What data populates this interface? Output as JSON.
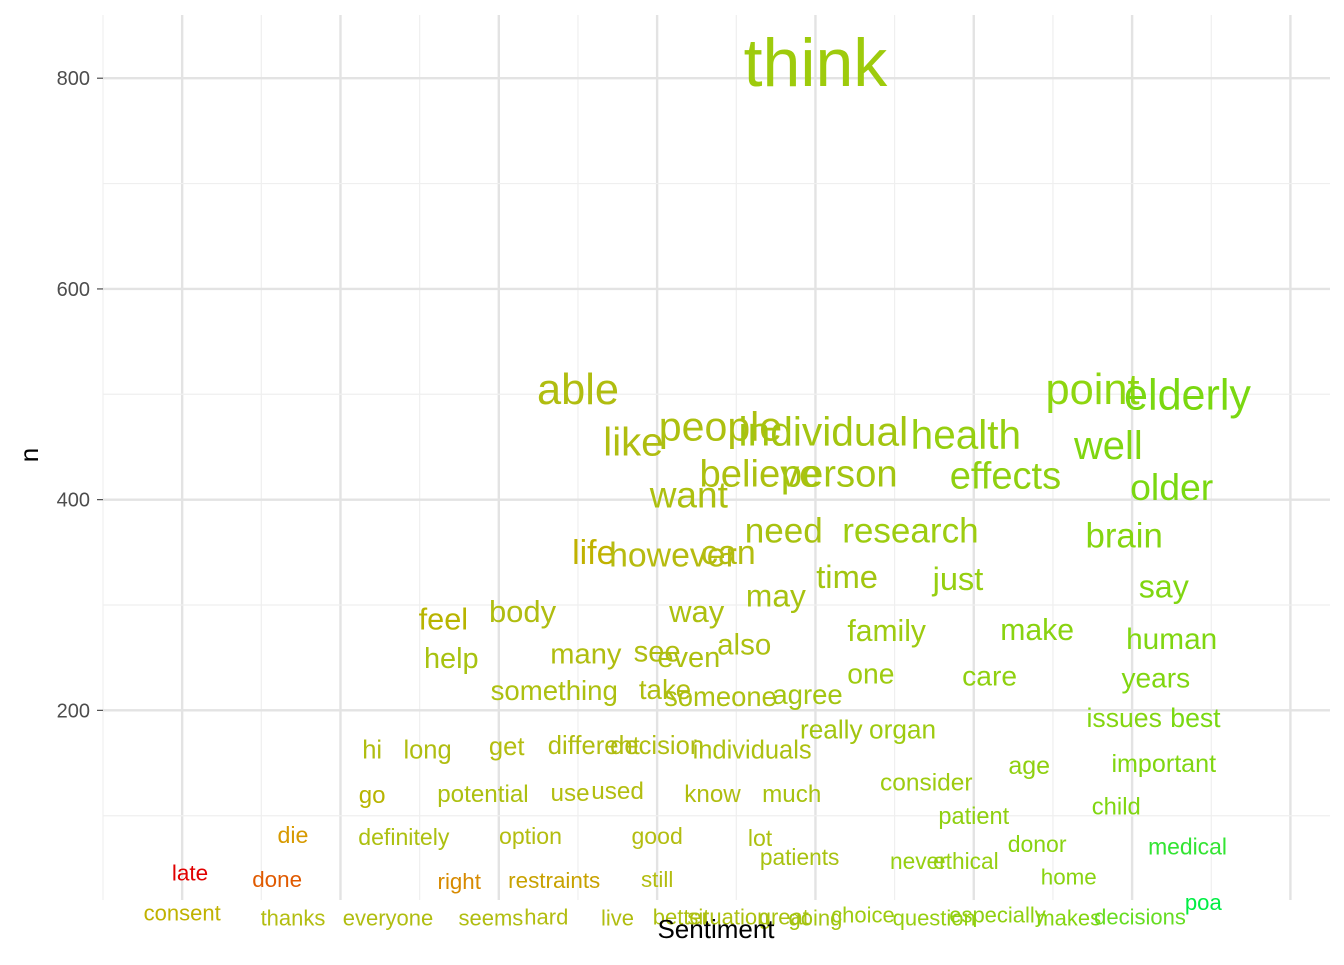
{
  "chart_data": {
    "type": "scatter",
    "subtype": "word-cloud-scatter",
    "xlabel": "Sentiment",
    "ylabel": "n",
    "xlim": [
      -0.7,
      0.85
    ],
    "ylim": [
      20,
      860
    ],
    "x_ticks": [],
    "y_ticks": [
      200,
      400,
      600,
      800
    ],
    "grid": true,
    "legend": "none",
    "colors": {
      "negative": "#e00000",
      "neutral": "#b8b400",
      "positive": "#00ee00",
      "grid_major": "#e3e3e3",
      "grid_minor": "#efefef",
      "axis_text": "#4d4d4d"
    },
    "words": [
      {
        "word": "think",
        "sentiment": 0.2,
        "n": 815,
        "color": "#9ecb0c"
      },
      {
        "word": "able",
        "sentiment": -0.1,
        "n": 505,
        "color": "#b0bd10"
      },
      {
        "word": "point",
        "sentiment": 0.55,
        "n": 505,
        "color": "#8ed610"
      },
      {
        "word": "elderly",
        "sentiment": 0.67,
        "n": 500,
        "color": "#7ad810"
      },
      {
        "word": "people",
        "sentiment": 0.08,
        "n": 470,
        "color": "#adc010"
      },
      {
        "word": "individual",
        "sentiment": 0.21,
        "n": 465,
        "color": "#a3c510"
      },
      {
        "word": "health",
        "sentiment": 0.39,
        "n": 462,
        "color": "#96cf10"
      },
      {
        "word": "like",
        "sentiment": -0.03,
        "n": 455,
        "color": "#b0bd10"
      },
      {
        "word": "well",
        "sentiment": 0.57,
        "n": 452,
        "color": "#80d610"
      },
      {
        "word": "believe",
        "sentiment": 0.13,
        "n": 425,
        "color": "#adc010"
      },
      {
        "word": "person",
        "sentiment": 0.23,
        "n": 425,
        "color": "#a3c510"
      },
      {
        "word": "effects",
        "sentiment": 0.44,
        "n": 423,
        "color": "#8fd010"
      },
      {
        "word": "older",
        "sentiment": 0.65,
        "n": 412,
        "color": "#7ad810"
      },
      {
        "word": "want",
        "sentiment": 0.04,
        "n": 405,
        "color": "#adc010"
      },
      {
        "word": "need",
        "sentiment": 0.16,
        "n": 371,
        "color": "#a8c210"
      },
      {
        "word": "research",
        "sentiment": 0.32,
        "n": 371,
        "color": "#9dcc10"
      },
      {
        "word": "brain",
        "sentiment": 0.59,
        "n": 366,
        "color": "#84d510"
      },
      {
        "word": "life",
        "sentiment": -0.08,
        "n": 350,
        "color": "#c0b200"
      },
      {
        "word": "however",
        "sentiment": 0.02,
        "n": 348,
        "color": "#b6bb10"
      },
      {
        "word": "can",
        "sentiment": 0.09,
        "n": 350,
        "color": "#b3bd10"
      },
      {
        "word": "time",
        "sentiment": 0.24,
        "n": 327,
        "color": "#a3c510"
      },
      {
        "word": "just",
        "sentiment": 0.38,
        "n": 325,
        "color": "#96cf10"
      },
      {
        "word": "say",
        "sentiment": 0.64,
        "n": 318,
        "color": "#80d610"
      },
      {
        "word": "may",
        "sentiment": 0.15,
        "n": 309,
        "color": "#a8c210"
      },
      {
        "word": "body",
        "sentiment": -0.17,
        "n": 294,
        "color": "#b0bd10"
      },
      {
        "word": "way",
        "sentiment": 0.05,
        "n": 294,
        "color": "#adc010"
      },
      {
        "word": "feel",
        "sentiment": -0.27,
        "n": 287,
        "color": "#b8b400"
      },
      {
        "word": "family",
        "sentiment": 0.29,
        "n": 276,
        "color": "#9ecb10"
      },
      {
        "word": "make",
        "sentiment": 0.48,
        "n": 277,
        "color": "#89d310"
      },
      {
        "word": "human",
        "sentiment": 0.65,
        "n": 268,
        "color": "#80d610"
      },
      {
        "word": "also",
        "sentiment": 0.11,
        "n": 263,
        "color": "#adc010"
      },
      {
        "word": "help",
        "sentiment": -0.26,
        "n": 250,
        "color": "#a8c210"
      },
      {
        "word": "many",
        "sentiment": -0.09,
        "n": 254,
        "color": "#b0bd10"
      },
      {
        "word": "see",
        "sentiment": 0.0,
        "n": 256,
        "color": "#b0bd10"
      },
      {
        "word": "even",
        "sentiment": 0.04,
        "n": 251,
        "color": "#adc010"
      },
      {
        "word": "one",
        "sentiment": 0.27,
        "n": 235,
        "color": "#9ecb10"
      },
      {
        "word": "care",
        "sentiment": 0.42,
        "n": 233,
        "color": "#8fd010"
      },
      {
        "word": "years",
        "sentiment": 0.63,
        "n": 231,
        "color": "#80d610"
      },
      {
        "word": "something",
        "sentiment": -0.13,
        "n": 219,
        "color": "#adc010"
      },
      {
        "word": "take",
        "sentiment": 0.01,
        "n": 220,
        "color": "#b0bd10"
      },
      {
        "word": "someone",
        "sentiment": 0.08,
        "n": 213,
        "color": "#adc010"
      },
      {
        "word": "agree",
        "sentiment": 0.19,
        "n": 215,
        "color": "#a3c510"
      },
      {
        "word": "issues",
        "sentiment": 0.59,
        "n": 193,
        "color": "#84d510"
      },
      {
        "word": "best",
        "sentiment": 0.68,
        "n": 193,
        "color": "#7ad810"
      },
      {
        "word": "really",
        "sentiment": 0.22,
        "n": 182,
        "color": "#a3c510"
      },
      {
        "word": "organ",
        "sentiment": 0.31,
        "n": 182,
        "color": "#9ecb10"
      },
      {
        "word": "hi",
        "sentiment": -0.36,
        "n": 163,
        "color": "#b0bd10"
      },
      {
        "word": "long",
        "sentiment": -0.29,
        "n": 163,
        "color": "#b0bd10"
      },
      {
        "word": "get",
        "sentiment": -0.19,
        "n": 166,
        "color": "#b3bd10"
      },
      {
        "word": "different",
        "sentiment": -0.08,
        "n": 167,
        "color": "#b0bd10"
      },
      {
        "word": "decision",
        "sentiment": 0.0,
        "n": 167,
        "color": "#b0bd10"
      },
      {
        "word": "individuals",
        "sentiment": 0.12,
        "n": 163,
        "color": "#adc010"
      },
      {
        "word": "age",
        "sentiment": 0.47,
        "n": 148,
        "color": "#8fd010"
      },
      {
        "word": "important",
        "sentiment": 0.64,
        "n": 150,
        "color": "#80d610"
      },
      {
        "word": "consider",
        "sentiment": 0.34,
        "n": 132,
        "color": "#9ecb10"
      },
      {
        "word": "go",
        "sentiment": -0.36,
        "n": 120,
        "color": "#b8b400"
      },
      {
        "word": "potential",
        "sentiment": -0.22,
        "n": 121,
        "color": "#adc010"
      },
      {
        "word": "use",
        "sentiment": -0.11,
        "n": 122,
        "color": "#b3bd10"
      },
      {
        "word": "used",
        "sentiment": -0.05,
        "n": 124,
        "color": "#b3bd10"
      },
      {
        "word": "know",
        "sentiment": 0.07,
        "n": 121,
        "color": "#b0bd10"
      },
      {
        "word": "much",
        "sentiment": 0.17,
        "n": 121,
        "color": "#a8c210"
      },
      {
        "word": "child",
        "sentiment": 0.58,
        "n": 109,
        "color": "#80d610"
      },
      {
        "word": "patient",
        "sentiment": 0.4,
        "n": 100,
        "color": "#8fd010"
      },
      {
        "word": "die",
        "sentiment": -0.46,
        "n": 82,
        "color": "#d79a00"
      },
      {
        "word": "definitely",
        "sentiment": -0.32,
        "n": 80,
        "color": "#adc010"
      },
      {
        "word": "option",
        "sentiment": -0.16,
        "n": 81,
        "color": "#b3bd10"
      },
      {
        "word": "good",
        "sentiment": 0.0,
        "n": 81,
        "color": "#b3bd10"
      },
      {
        "word": "lot",
        "sentiment": 0.13,
        "n": 79,
        "color": "#adc010"
      },
      {
        "word": "donor",
        "sentiment": 0.48,
        "n": 73,
        "color": "#89d310"
      },
      {
        "word": "medical",
        "sentiment": 0.67,
        "n": 71,
        "color": "#33e433"
      },
      {
        "word": "patients",
        "sentiment": 0.18,
        "n": 61,
        "color": "#a8c210"
      },
      {
        "word": "never",
        "sentiment": 0.33,
        "n": 57,
        "color": "#96cf10"
      },
      {
        "word": "ethical",
        "sentiment": 0.39,
        "n": 57,
        "color": "#96cf10"
      },
      {
        "word": "late",
        "sentiment": -0.59,
        "n": 46,
        "color": "#e00000"
      },
      {
        "word": "done",
        "sentiment": -0.48,
        "n": 40,
        "color": "#e05a00"
      },
      {
        "word": "right",
        "sentiment": -0.25,
        "n": 38,
        "color": "#d78a00"
      },
      {
        "word": "restraints",
        "sentiment": -0.13,
        "n": 39,
        "color": "#c8a200"
      },
      {
        "word": "still",
        "sentiment": 0.0,
        "n": 40,
        "color": "#b3bd10"
      },
      {
        "word": "home",
        "sentiment": 0.52,
        "n": 42,
        "color": "#89d310"
      },
      {
        "word": "poa",
        "sentiment": 0.69,
        "n": 18,
        "color": "#00ee44"
      },
      {
        "word": "consent",
        "sentiment": -0.6,
        "n": 8,
        "color": "#c0b200"
      },
      {
        "word": "thanks",
        "sentiment": -0.46,
        "n": 3,
        "color": "#b3bd10"
      },
      {
        "word": "everyone",
        "sentiment": -0.34,
        "n": 3,
        "color": "#b0bd10"
      },
      {
        "word": "seems",
        "sentiment": -0.21,
        "n": 3,
        "color": "#b0bd10"
      },
      {
        "word": "hard",
        "sentiment": -0.14,
        "n": 4,
        "color": "#b3bd10"
      },
      {
        "word": "live",
        "sentiment": -0.05,
        "n": 3,
        "color": "#b0bd10"
      },
      {
        "word": "better",
        "sentiment": 0.03,
        "n": 4,
        "color": "#adc010"
      },
      {
        "word": "situation",
        "sentiment": 0.09,
        "n": 4,
        "color": "#adc010"
      },
      {
        "word": "great",
        "sentiment": 0.16,
        "n": 4,
        "color": "#a8c210"
      },
      {
        "word": "going",
        "sentiment": 0.2,
        "n": 3,
        "color": "#a3c510"
      },
      {
        "word": "choice",
        "sentiment": 0.26,
        "n": 6,
        "color": "#9ecb10"
      },
      {
        "word": "question",
        "sentiment": 0.35,
        "n": 3,
        "color": "#96cf10"
      },
      {
        "word": "especially",
        "sentiment": 0.43,
        "n": 6,
        "color": "#8fd010"
      },
      {
        "word": "makes",
        "sentiment": 0.52,
        "n": 3,
        "color": "#84d510"
      },
      {
        "word": "decisions",
        "sentiment": 0.61,
        "n": 4,
        "color": "#66dd22"
      }
    ]
  }
}
